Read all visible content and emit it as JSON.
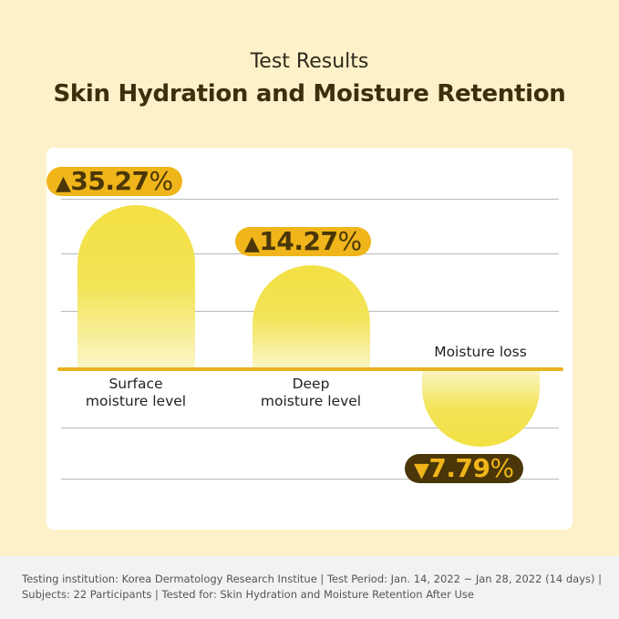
{
  "header": {
    "subtitle": "Test Results",
    "title": "Skin Hydration and Moisture Retention"
  },
  "colors": {
    "background": "#fdf1c9",
    "bar": "#f3e043",
    "badge_up": "#f0b51a",
    "badge_down": "#4a3608",
    "axis": "#e8b321"
  },
  "chart_data": {
    "type": "bar",
    "categories": [
      "Surface moisture level",
      "Deep moisture level",
      "Moisture loss"
    ],
    "category_lines": [
      [
        "Surface",
        "moisture level"
      ],
      [
        "Deep",
        "moisture level"
      ],
      [
        "Moisture loss"
      ]
    ],
    "values": [
      35.27,
      -14.27,
      -7.79
    ],
    "signed_values": [
      35.27,
      14.27,
      -7.79
    ],
    "labels": [
      {
        "arrow": "▲",
        "value": "35.27",
        "unit": "%"
      },
      {
        "arrow": "▲",
        "value": "14.27",
        "unit": "%"
      },
      {
        "arrow": "▼",
        "value": "7.79",
        "unit": "%"
      }
    ],
    "grid": true,
    "unit": "%"
  },
  "footer": {
    "text": "Testing institution: Korea Dermatology Research Institue | Test Period: Jan. 14, 2022 ~ Jan 28, 2022  (14 days) | Subjects: 22 Participants | Tested for: Skin Hydration and Moisture Retention After Use"
  }
}
